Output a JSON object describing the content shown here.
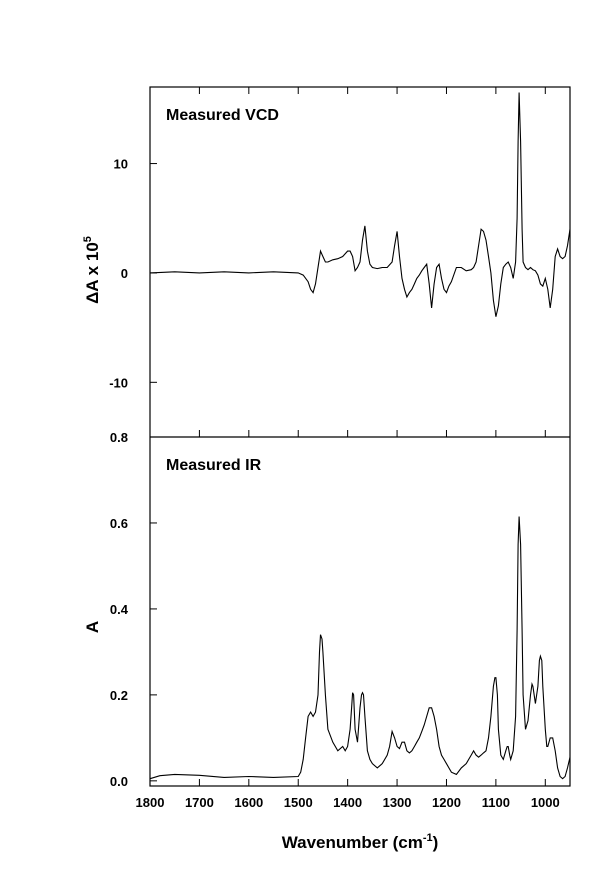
{
  "chart_data": [
    {
      "type": "line",
      "label": "Measured VCD",
      "ylabel_main": "ΔA x 10",
      "ylabel_sup": "5",
      "xlim": [
        1800,
        950
      ],
      "ylim": [
        -15,
        17
      ],
      "yticks": [
        10,
        0,
        -10
      ],
      "ytick_labels": [
        "10",
        "0",
        "-10"
      ],
      "grid": false,
      "series": [
        {
          "x": [
            1800,
            1750,
            1700,
            1650,
            1600,
            1550,
            1500,
            1490,
            1480,
            1475,
            1470,
            1465,
            1460,
            1455,
            1450,
            1445,
            1440,
            1430,
            1420,
            1410,
            1400,
            1395,
            1390,
            1385,
            1380,
            1375,
            1370,
            1365,
            1360,
            1355,
            1350,
            1340,
            1330,
            1320,
            1310,
            1305,
            1300,
            1295,
            1290,
            1285,
            1280,
            1275,
            1270,
            1265,
            1260,
            1255,
            1250,
            1245,
            1240,
            1235,
            1230,
            1225,
            1220,
            1215,
            1210,
            1205,
            1200,
            1195,
            1190,
            1180,
            1170,
            1160,
            1150,
            1145,
            1140,
            1135,
            1130,
            1125,
            1120,
            1115,
            1110,
            1105,
            1100,
            1095,
            1090,
            1085,
            1080,
            1075,
            1070,
            1065,
            1060,
            1057,
            1055,
            1053,
            1050,
            1047,
            1045,
            1040,
            1035,
            1030,
            1025,
            1020,
            1015,
            1010,
            1005,
            1000,
            995,
            990,
            985,
            980,
            975,
            970,
            965,
            960,
            955,
            950
          ],
          "values": [
            0,
            0.1,
            0,
            0.1,
            0,
            0.1,
            0,
            -0.2,
            -0.8,
            -1.5,
            -1.8,
            -1.0,
            0.5,
            2.0,
            1.5,
            1.0,
            1.0,
            1.2,
            1.3,
            1.5,
            2.0,
            2.0,
            1.5,
            0.2,
            0.5,
            1.0,
            3.0,
            4.3,
            2.0,
            0.8,
            0.5,
            0.4,
            0.5,
            0.5,
            1.0,
            2.5,
            3.8,
            1.5,
            -0.5,
            -1.5,
            -2.2,
            -1.8,
            -1.5,
            -1.0,
            -0.5,
            -0.2,
            0.2,
            0.5,
            0.8,
            -1.0,
            -3.2,
            -1.0,
            0.5,
            0.8,
            -0.5,
            -1.5,
            -1.8,
            -1.2,
            -0.8,
            0.5,
            0.5,
            0.2,
            0.3,
            0.5,
            1.0,
            2.5,
            4.0,
            3.8,
            3.0,
            1.5,
            0,
            -2.5,
            -4.0,
            -3.0,
            -1.0,
            0.5,
            0.8,
            1.0,
            0.5,
            -0.5,
            1.0,
            5.0,
            12.0,
            16.5,
            12.0,
            4.0,
            1.0,
            0.5,
            0.3,
            0.5,
            0.3,
            0.2,
            -0.2,
            -1.0,
            -1.2,
            -0.5,
            -1.5,
            -3.2,
            -1.5,
            1.5,
            2.2,
            1.5,
            1.3,
            1.5,
            2.5,
            4.0
          ]
        }
      ]
    },
    {
      "type": "line",
      "label": "Measured IR",
      "ylabel_main": "A",
      "xlabel_main": "Wavenumber (cm",
      "xlabel_sup": "-1",
      "xlabel_end": ")",
      "xlim": [
        1800,
        950
      ],
      "ylim": [
        -0.012,
        0.8
      ],
      "yticks": [
        0.0,
        0.2,
        0.4,
        0.6,
        0.8
      ],
      "ytick_labels": [
        "0.0",
        "0.2",
        "0.4",
        "0.6",
        "0.8"
      ],
      "xticks": [
        1800,
        1700,
        1600,
        1500,
        1400,
        1300,
        1200,
        1100,
        1000
      ],
      "xtick_labels": [
        "1800",
        "1700",
        "1600",
        "1500",
        "1400",
        "1300",
        "1200",
        "1100",
        "1000"
      ],
      "grid": false,
      "series": [
        {
          "x": [
            1800,
            1780,
            1750,
            1700,
            1650,
            1600,
            1550,
            1500,
            1495,
            1490,
            1485,
            1480,
            1475,
            1470,
            1465,
            1460,
            1457,
            1455,
            1452,
            1450,
            1445,
            1440,
            1430,
            1420,
            1410,
            1405,
            1400,
            1395,
            1392,
            1390,
            1388,
            1385,
            1380,
            1375,
            1372,
            1370,
            1368,
            1365,
            1360,
            1355,
            1350,
            1340,
            1330,
            1320,
            1315,
            1310,
            1305,
            1300,
            1295,
            1290,
            1285,
            1280,
            1275,
            1270,
            1265,
            1260,
            1255,
            1250,
            1245,
            1240,
            1235,
            1230,
            1225,
            1220,
            1215,
            1210,
            1205,
            1200,
            1195,
            1190,
            1180,
            1170,
            1160,
            1155,
            1150,
            1145,
            1140,
            1135,
            1130,
            1125,
            1120,
            1115,
            1110,
            1105,
            1102,
            1100,
            1097,
            1095,
            1090,
            1085,
            1080,
            1077,
            1075,
            1072,
            1070,
            1065,
            1060,
            1057,
            1055,
            1053,
            1050,
            1047,
            1045,
            1040,
            1035,
            1030,
            1027,
            1025,
            1020,
            1015,
            1012,
            1010,
            1007,
            1005,
            1000,
            997,
            995,
            990,
            985,
            980,
            975,
            970,
            965,
            960,
            955,
            950
          ],
          "values": [
            0.005,
            0.012,
            0.015,
            0.013,
            0.008,
            0.01,
            0.008,
            0.01,
            0.02,
            0.05,
            0.1,
            0.15,
            0.16,
            0.15,
            0.16,
            0.2,
            0.3,
            0.34,
            0.33,
            0.3,
            0.2,
            0.12,
            0.09,
            0.07,
            0.08,
            0.07,
            0.08,
            0.12,
            0.17,
            0.205,
            0.2,
            0.12,
            0.09,
            0.17,
            0.2,
            0.205,
            0.2,
            0.15,
            0.07,
            0.05,
            0.04,
            0.03,
            0.04,
            0.06,
            0.08,
            0.115,
            0.1,
            0.08,
            0.075,
            0.09,
            0.09,
            0.07,
            0.065,
            0.07,
            0.08,
            0.09,
            0.1,
            0.115,
            0.13,
            0.15,
            0.17,
            0.17,
            0.15,
            0.12,
            0.08,
            0.06,
            0.05,
            0.04,
            0.03,
            0.02,
            0.015,
            0.03,
            0.04,
            0.05,
            0.06,
            0.07,
            0.06,
            0.055,
            0.06,
            0.065,
            0.07,
            0.1,
            0.15,
            0.22,
            0.24,
            0.24,
            0.2,
            0.12,
            0.06,
            0.05,
            0.07,
            0.08,
            0.08,
            0.06,
            0.05,
            0.07,
            0.15,
            0.35,
            0.55,
            0.615,
            0.55,
            0.35,
            0.2,
            0.12,
            0.14,
            0.2,
            0.225,
            0.22,
            0.18,
            0.22,
            0.28,
            0.29,
            0.28,
            0.22,
            0.12,
            0.08,
            0.08,
            0.1,
            0.1,
            0.07,
            0.03,
            0.01,
            0.005,
            0.01,
            0.03,
            0.055
          ]
        }
      ]
    }
  ]
}
